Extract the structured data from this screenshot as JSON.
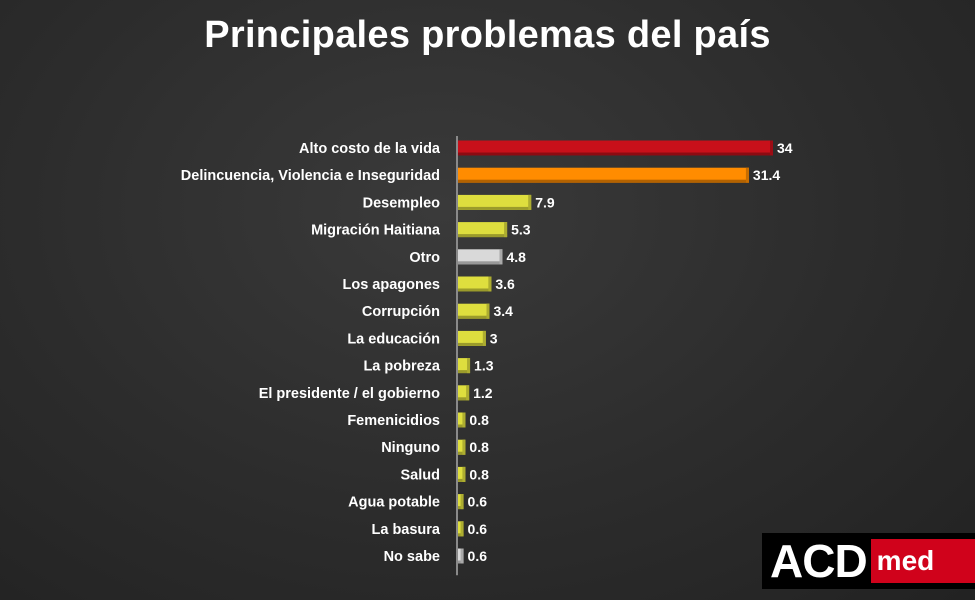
{
  "chart_data": {
    "type": "bar",
    "orientation": "horizontal",
    "title": "Principales problemas del país",
    "categories": [
      "Alto costo de la vida",
      "Delincuencia, Violencia e Inseguridad",
      "Desempleo",
      "Migración Haitiana",
      "Otro",
      "Los apagones",
      "Corrupción",
      "La educación",
      "La pobreza",
      "El presidente / el gobierno",
      "Femenicidios",
      "Ninguno",
      "Salud",
      "Agua potable",
      "La basura",
      "No sabe"
    ],
    "values": [
      34,
      31.4,
      7.9,
      5.3,
      4.8,
      3.6,
      3.4,
      3,
      1.3,
      1.2,
      0.8,
      0.8,
      0.8,
      0.6,
      0.6,
      0.6
    ],
    "value_labels": [
      "34",
      "31.4",
      "7.9",
      "5.3",
      "4.8",
      "3.6",
      "3.4",
      "3",
      "1.3",
      "1.2",
      "0.8",
      "0.8",
      "0.8",
      "0.6",
      "0.6",
      "0.6"
    ],
    "colors": [
      "#c8101a",
      "#ff8c00",
      "#dede3e",
      "#dede3e",
      "#d9d9d9",
      "#dede3e",
      "#dede3e",
      "#dede3e",
      "#dede3e",
      "#dede3e",
      "#dede3e",
      "#dede3e",
      "#dede3e",
      "#dede3e",
      "#dede3e",
      "#d9d9d9"
    ],
    "xlim": [
      0,
      34
    ],
    "grid": false,
    "legend": "none"
  },
  "logo": {
    "main": "ACD",
    "sub": "med"
  }
}
